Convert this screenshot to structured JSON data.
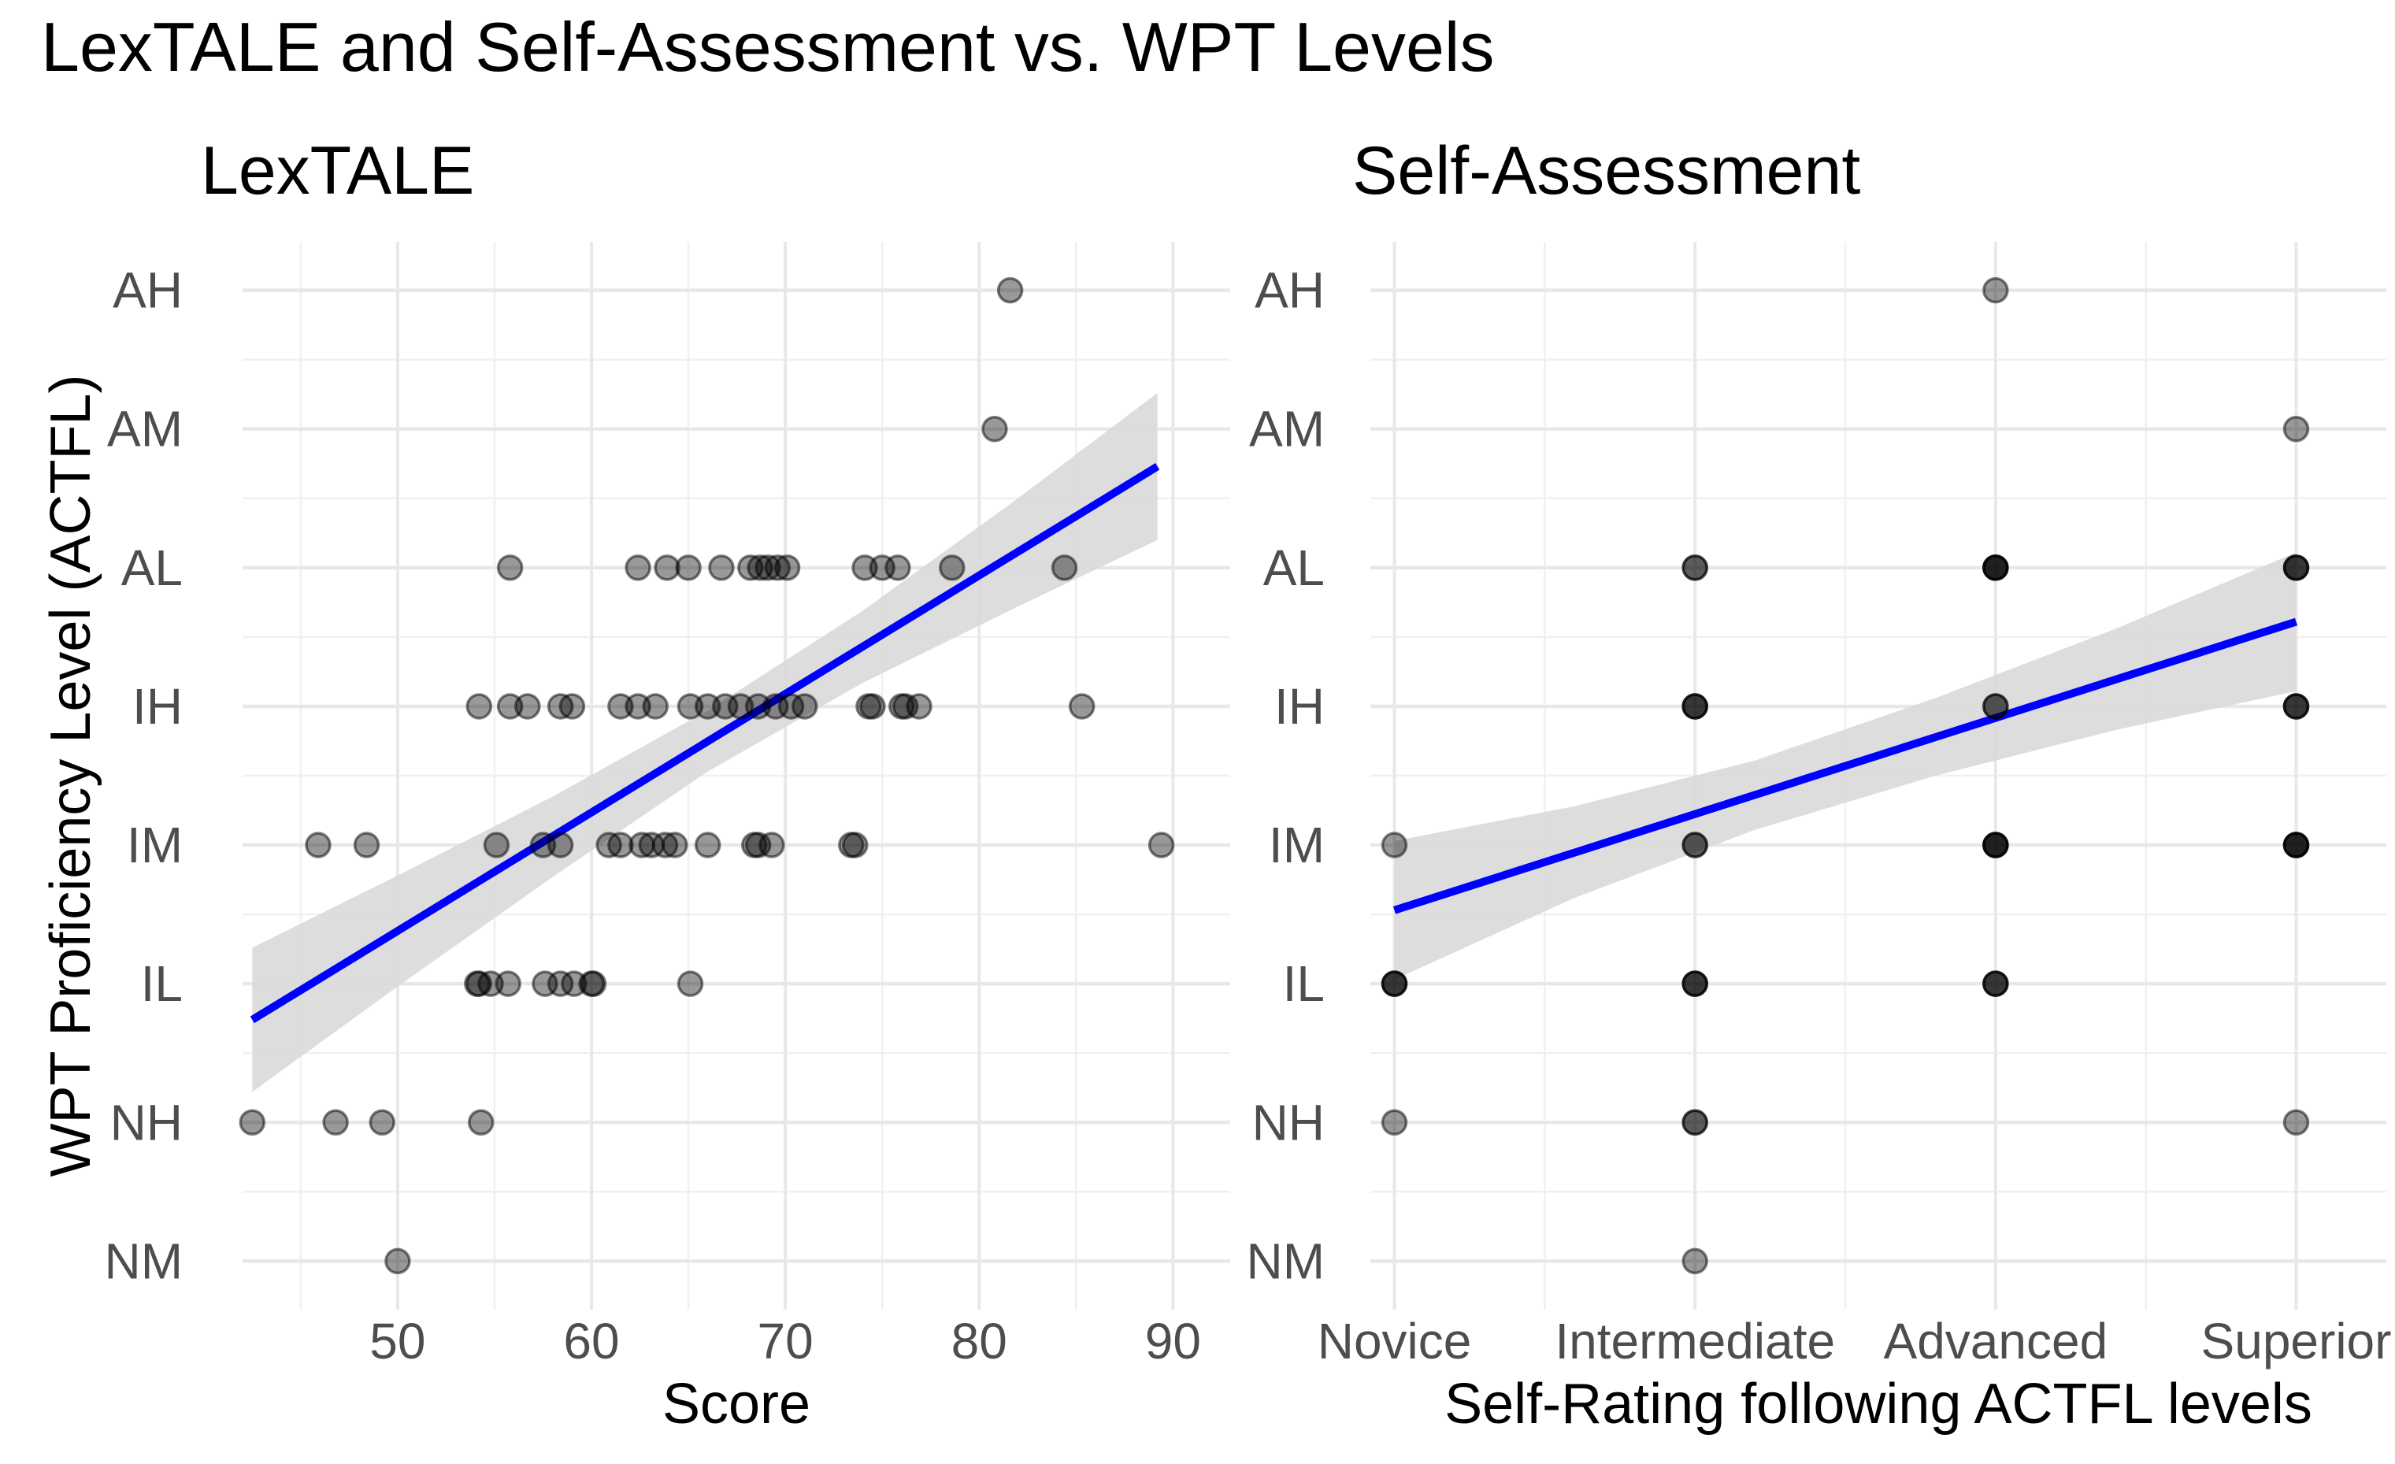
{
  "title": "LexTALE and Self-Assessment vs. WPT Levels",
  "y_axis_title": "WPT Proficiency Level (ACTFL)",
  "levels_bottom_to_top": [
    "NM",
    "NH",
    "IL",
    "IM",
    "IH",
    "AL",
    "AM",
    "AH"
  ],
  "colors": {
    "background": "#FFFFFF",
    "grid_major": "#E8E8E8",
    "grid_minor": "#F0F0F0",
    "tick_label": "#4D4D4D",
    "title_text": "#000000",
    "point_fill": "#000000",
    "trend_line": "#0000FF",
    "ci_band": "#D9D9D9"
  },
  "chart_data": [
    {
      "type": "scatter",
      "facet_label": "LexTALE",
      "xlabel": "Score",
      "x_scale": "linear",
      "xlim": [
        42.0,
        92.95
      ],
      "ylim_levels": [
        -0.35,
        7.35
      ],
      "x_major_ticks": [
        50,
        60,
        70,
        80,
        90
      ],
      "x_minor_ticks": [
        45,
        55,
        65,
        75,
        85
      ],
      "grid": true,
      "legend": "none",
      "points_by_level": {
        "AH": [
          81.6
        ],
        "AM": [
          80.8
        ],
        "AL": [
          55.8,
          62.4,
          63.9,
          65.0,
          66.7,
          68.2,
          68.7,
          69.1,
          69.6,
          70.1,
          74.1,
          75.0,
          75.8,
          78.6,
          84.4
        ],
        "IH": [
          54.2,
          55.8,
          56.7,
          58.4,
          59.0,
          61.5,
          62.4,
          63.3,
          65.1,
          66.0,
          66.9,
          67.7,
          68.6,
          69.5,
          70.3,
          71.0,
          74.3,
          74.5,
          76.0,
          76.2,
          76.9,
          85.3
        ],
        "IM": [
          45.9,
          48.4,
          55.1,
          57.5,
          58.4,
          60.9,
          61.5,
          62.6,
          63.1,
          63.8,
          64.3,
          66.0,
          68.4,
          68.6,
          69.3,
          73.4,
          73.6,
          89.4
        ],
        "IL": [
          54.1,
          54.2,
          54.8,
          55.7,
          57.6,
          58.4,
          59.1,
          60.0,
          60.1,
          65.1
        ],
        "NH": [
          42.5,
          46.8,
          49.2,
          54.3
        ],
        "NM": [
          50.0
        ]
      },
      "trend": {
        "x": [
          42.5,
          89.2
        ],
        "y_level": [
          1.74,
          5.73
        ]
      },
      "ci_band": {
        "x": [
          42.5,
          50,
          58,
          66,
          74,
          82,
          89.2
        ],
        "upper": [
          2.26,
          2.78,
          3.35,
          3.97,
          4.69,
          5.5,
          6.26
        ],
        "lower": [
          1.22,
          1.98,
          2.77,
          3.53,
          4.17,
          4.72,
          5.2
        ]
      }
    },
    {
      "type": "scatter",
      "facet_label": "Self-Assessment",
      "xlabel": "Self-Rating following ACTFL levels",
      "x_scale": "categorical",
      "x_categories": [
        "Novice",
        "Intermediate",
        "Advanced",
        "Superior"
      ],
      "xlim": [
        0.92,
        4.3
      ],
      "ylim_levels": [
        -0.35,
        7.35
      ],
      "grid": true,
      "legend": "none",
      "points_by_level": {
        "AH": {
          "Advanced": 1
        },
        "AM": {
          "Superior": 1
        },
        "AL": {
          "Intermediate": 2,
          "Advanced": 4,
          "Superior": 3
        },
        "IH": {
          "Intermediate": 3,
          "Advanced": 2,
          "Superior": 3
        },
        "IM": {
          "Novice": 1,
          "Intermediate": 2,
          "Advanced": 4,
          "Superior": 4
        },
        "IL": {
          "Novice": 3,
          "Intermediate": 3,
          "Advanced": 3
        },
        "NH": {
          "Novice": 1,
          "Intermediate": 2,
          "Superior": 1
        },
        "NM": {
          "Intermediate": 1
        }
      },
      "trend": {
        "x": [
          1,
          4
        ],
        "y_level": [
          2.53,
          4.61
        ]
      },
      "ci_band": {
        "x": [
          1,
          1.6,
          2.2,
          2.8,
          3.4,
          4
        ],
        "upper": [
          3.03,
          3.28,
          3.61,
          4.06,
          4.56,
          5.11
        ],
        "lower": [
          2.03,
          2.62,
          3.11,
          3.5,
          3.83,
          4.11
        ]
      }
    }
  ]
}
